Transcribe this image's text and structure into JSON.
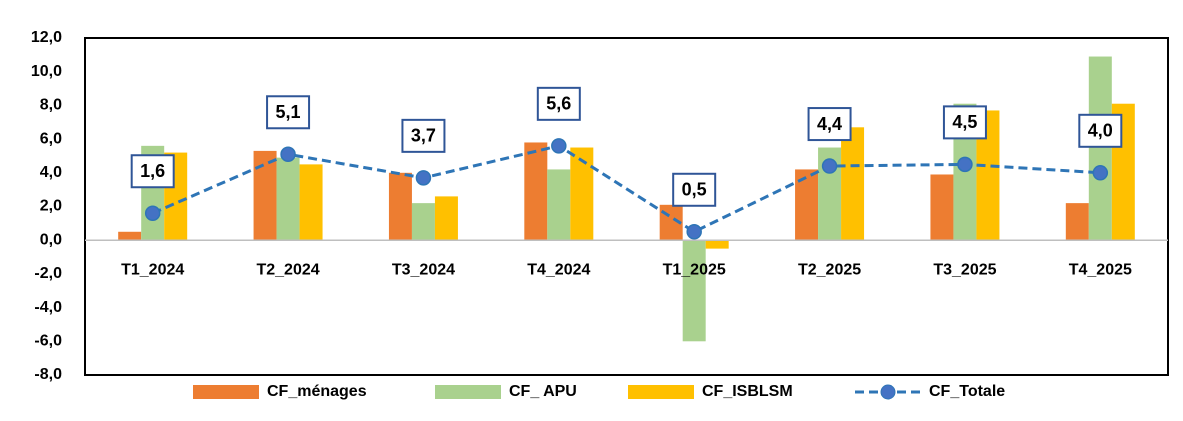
{
  "chart_data": {
    "type": "bar",
    "categories": [
      "T1_2024",
      "T2_2024",
      "T3_2024",
      "T4_2024",
      "T1_2025",
      "T2_2025",
      "T3_2025",
      "T4_2025"
    ],
    "series": [
      {
        "name": "CF_ménages",
        "color": "#ed7d31",
        "values": [
          0.5,
          5.3,
          4.0,
          5.8,
          2.1,
          4.2,
          3.9,
          2.2
        ]
      },
      {
        "name": "CF_ APU",
        "color": "#a9d18e",
        "values": [
          5.6,
          4.9,
          2.2,
          4.2,
          -6.0,
          5.5,
          8.1,
          10.9
        ]
      },
      {
        "name": "CF_ISBLSM",
        "color": "#ffc000",
        "values": [
          5.2,
          4.5,
          2.6,
          5.5,
          -0.5,
          6.7,
          7.7,
          8.1
        ]
      },
      {
        "name": "CF_Totale",
        "type": "line",
        "color": "#2e75b6",
        "values": [
          1.6,
          5.1,
          3.7,
          5.6,
          0.5,
          4.4,
          4.5,
          4.0
        ],
        "value_labels": [
          "1,6",
          "5,1",
          "3,7",
          "5,6",
          "0,5",
          "4,4",
          "4,5",
          "4,0"
        ]
      }
    ],
    "ylim": [
      -8,
      12
    ],
    "yticks": [
      {
        "value": -8,
        "label": "-8,0"
      },
      {
        "value": -6,
        "label": "-6,0"
      },
      {
        "value": -4,
        "label": "-4,0"
      },
      {
        "value": -2,
        "label": "-2,0"
      },
      {
        "value": 0,
        "label": "0,0"
      },
      {
        "value": 2,
        "label": "2,0"
      },
      {
        "value": 4,
        "label": "4,0"
      },
      {
        "value": 6,
        "label": "6,0"
      },
      {
        "value": 8,
        "label": "8,0"
      },
      {
        "value": 10,
        "label": "10,0"
      },
      {
        "value": 12,
        "label": "12,0"
      }
    ],
    "grid": false,
    "legend": "bottom"
  }
}
